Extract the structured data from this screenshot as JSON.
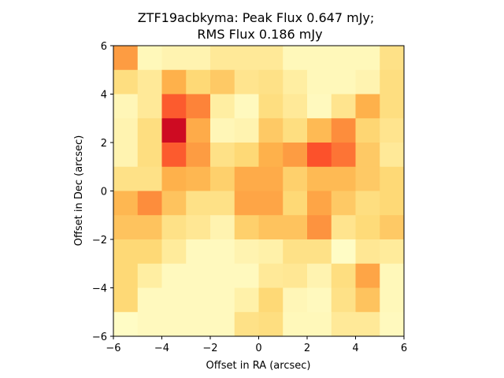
{
  "chart_data": {
    "type": "heatmap",
    "title_line1": "ZTF19acbkyma: Peak Flux 0.647 mJy;",
    "title_line2": "RMS Flux 0.186 mJy",
    "xlabel": "Offset in RA (arcsec)",
    "ylabel": "Offset in Dec (arcsec)",
    "xlim": [
      -6,
      6
    ],
    "ylim": [
      -6,
      6
    ],
    "x_ticks": [
      -6,
      -4,
      -2,
      0,
      2,
      4,
      6
    ],
    "y_ticks": [
      -6,
      -4,
      -2,
      0,
      2,
      4,
      6
    ],
    "x_tick_labels": [
      "−6",
      "−4",
      "−2",
      "0",
      "2",
      "4",
      "6"
    ],
    "y_tick_labels": [
      "−6",
      "−4",
      "−2",
      "0",
      "2",
      "4",
      "6"
    ],
    "colormap": "YlOrRd",
    "grid": false,
    "values_note_rows": "rows listed from top (Dec +6) to bottom (Dec −6), columns from RA −6 to +6, normalized 0–1",
    "values": [
      [
        0.45,
        0.05,
        0.08,
        0.08,
        0.15,
        0.15,
        0.15,
        0.05,
        0.05,
        0.05,
        0.05,
        0.2
      ],
      [
        0.22,
        0.15,
        0.38,
        0.25,
        0.3,
        0.18,
        0.2,
        0.12,
        0.05,
        0.05,
        0.08,
        0.22
      ],
      [
        0.06,
        0.15,
        0.6,
        0.52,
        0.12,
        0.04,
        0.22,
        0.15,
        0.04,
        0.18,
        0.38,
        0.22
      ],
      [
        0.08,
        0.22,
        0.82,
        0.4,
        0.06,
        0.08,
        0.3,
        0.22,
        0.35,
        0.5,
        0.26,
        0.18
      ],
      [
        0.08,
        0.22,
        0.6,
        0.45,
        0.2,
        0.25,
        0.38,
        0.45,
        0.62,
        0.55,
        0.3,
        0.15
      ],
      [
        0.2,
        0.2,
        0.38,
        0.36,
        0.28,
        0.4,
        0.4,
        0.28,
        0.35,
        0.35,
        0.3,
        0.25
      ],
      [
        0.36,
        0.5,
        0.32,
        0.2,
        0.2,
        0.42,
        0.42,
        0.25,
        0.42,
        0.3,
        0.22,
        0.25
      ],
      [
        0.32,
        0.32,
        0.2,
        0.16,
        0.08,
        0.28,
        0.32,
        0.32,
        0.48,
        0.18,
        0.24,
        0.3
      ],
      [
        0.25,
        0.25,
        0.14,
        0.04,
        0.04,
        0.08,
        0.1,
        0.2,
        0.2,
        0.02,
        0.16,
        0.14
      ],
      [
        0.25,
        0.12,
        0.04,
        0.04,
        0.04,
        0.04,
        0.15,
        0.16,
        0.08,
        0.22,
        0.42,
        0.05
      ],
      [
        0.25,
        0.04,
        0.04,
        0.04,
        0.04,
        0.1,
        0.25,
        0.06,
        0.04,
        0.2,
        0.32,
        0.05
      ],
      [
        0.02,
        0.04,
        0.04,
        0.04,
        0.04,
        0.2,
        0.22,
        0.05,
        0.05,
        0.15,
        0.15,
        0.04
      ]
    ]
  }
}
